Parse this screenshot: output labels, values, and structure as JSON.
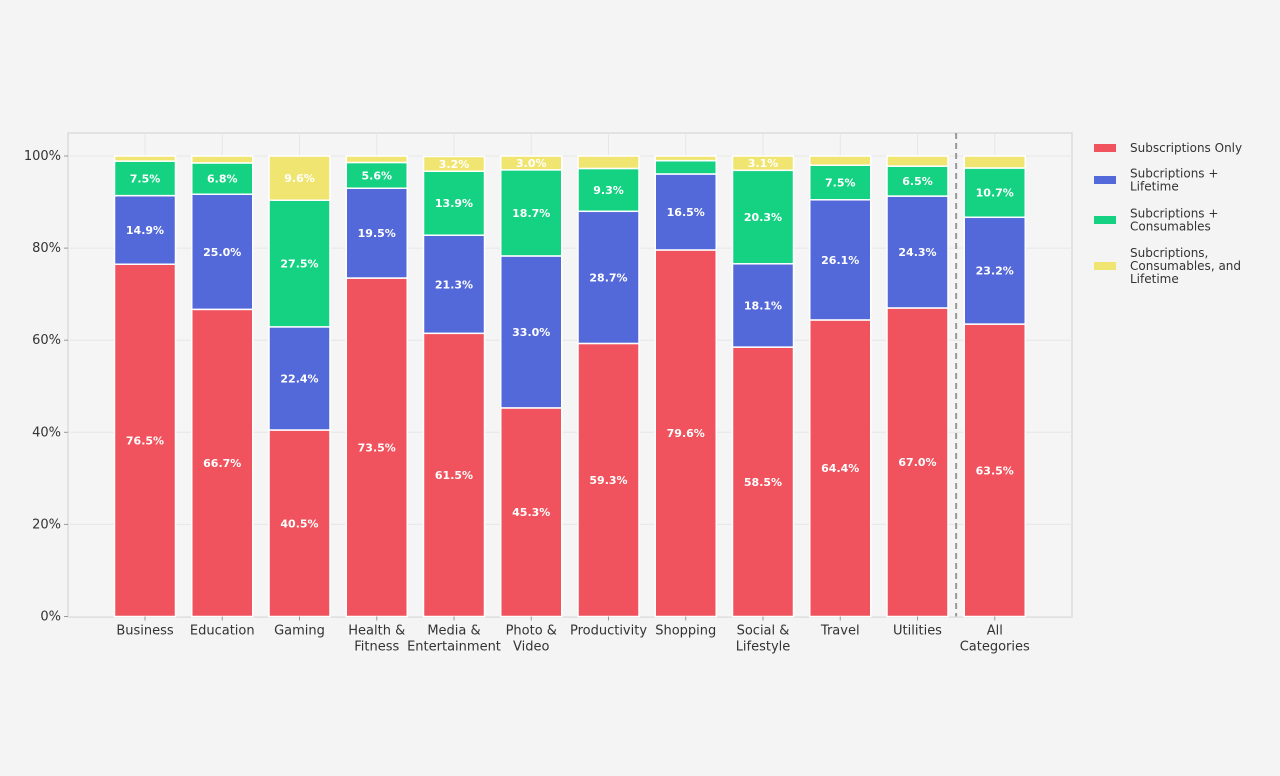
{
  "chart_data": {
    "type": "bar",
    "stacked": true,
    "categories": [
      [
        "Business"
      ],
      [
        "Education"
      ],
      [
        "Gaming"
      ],
      [
        "Health &",
        "Fitness"
      ],
      [
        "Media &",
        "Entertainment"
      ],
      [
        "Photo &",
        "Video"
      ],
      [
        "Productivity"
      ],
      [
        "Shopping"
      ],
      [
        "Social &",
        "Lifestyle"
      ],
      [
        "Travel"
      ],
      [
        "Utilities"
      ],
      [
        "All",
        "Categories"
      ]
    ],
    "series": [
      {
        "name": "Subscriptions Only",
        "color": "#f0535d",
        "values": [
          76.5,
          66.7,
          40.5,
          73.5,
          61.5,
          45.3,
          59.3,
          79.6,
          58.5,
          64.4,
          67.0,
          63.5
        ]
      },
      {
        "name": "Subcriptions + Lifetime",
        "color": "#5469d9",
        "values": [
          14.9,
          25.0,
          22.4,
          19.5,
          21.3,
          33.0,
          28.7,
          16.5,
          18.1,
          26.1,
          24.3,
          23.2
        ]
      },
      {
        "name": "Subcriptions + Consumables",
        "color": "#15d283",
        "values": [
          7.5,
          6.8,
          27.5,
          5.6,
          13.9,
          18.7,
          9.3,
          2.9,
          20.3,
          7.5,
          6.5,
          10.7
        ]
      },
      {
        "name": "Subcriptions, Consumables, and Lifetime",
        "color": "#f0e570",
        "values": [
          1.1,
          1.5,
          9.6,
          1.4,
          3.2,
          3.0,
          2.7,
          1.0,
          3.1,
          2.0,
          2.2,
          2.6
        ]
      }
    ],
    "yticks": [
      "0%",
      "20%",
      "40%",
      "60%",
      "80%",
      "100%"
    ],
    "ylim": [
      0,
      105
    ],
    "grid": true,
    "legend": "right",
    "separator_before": "All Categories",
    "xlabel": "",
    "ylabel": ""
  }
}
